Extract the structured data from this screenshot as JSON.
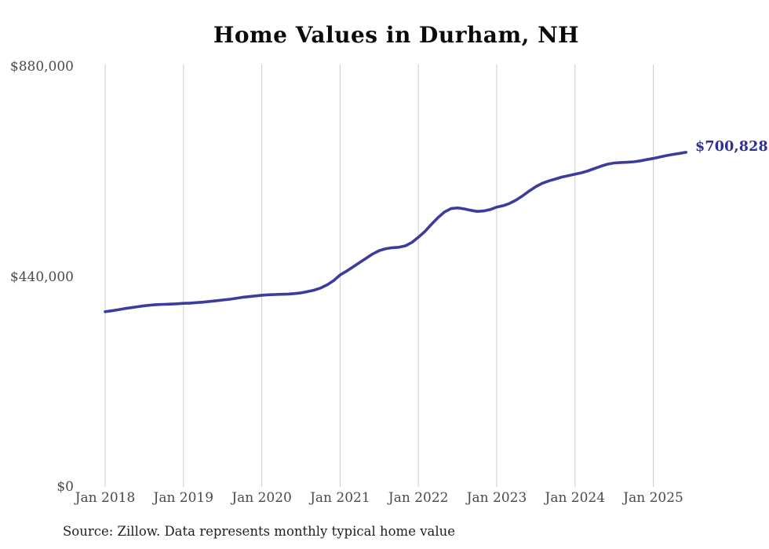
{
  "title": "Home Values in Durham, NH",
  "annotation": {
    "final_label": "$700,828"
  },
  "source_note": "Source: Zillow. Data represents monthly typical home value",
  "colors": {
    "line": "#3d3c9e",
    "annotation": "#2f2d96",
    "gridline": "#cccccc",
    "tick_text": "#4a4a4a",
    "title_text": "#0a0a0a",
    "background": "#ffffff"
  },
  "chart_data": {
    "type": "line",
    "title": "Home Values in Durham, NH",
    "xlabel": "",
    "ylabel": "",
    "x_start": "2018-01",
    "x_end": "2025-06",
    "x_interval": "monthly",
    "ylim": [
      0,
      880000
    ],
    "grid": "vertical-only",
    "legend": "none",
    "final_value": 700828,
    "y_ticks": [
      {
        "label": "$880,000",
        "value": 880000
      },
      {
        "label": "$440,000",
        "value": 440000
      },
      {
        "label": "$0",
        "value": 0
      }
    ],
    "x_ticks": [
      "Jan 2018",
      "Jan 2019",
      "Jan 2020",
      "Jan 2021",
      "Jan 2022",
      "Jan 2023",
      "Jan 2024",
      "Jan 2025"
    ],
    "values": [
      367000,
      369000,
      371000,
      373500,
      375500,
      377500,
      379500,
      381000,
      382000,
      382500,
      383000,
      383500,
      384500,
      385000,
      386000,
      387000,
      388500,
      390000,
      391500,
      393000,
      395000,
      397000,
      398500,
      400000,
      401500,
      402500,
      403000,
      403500,
      404000,
      405000,
      406500,
      409000,
      412000,
      416500,
      423000,
      432000,
      444000,
      452000,
      461000,
      470000,
      479000,
      488000,
      495000,
      499000,
      501000,
      502000,
      505000,
      512000,
      523000,
      535000,
      550000,
      564000,
      576000,
      583000,
      584500,
      582500,
      579500,
      577000,
      578000,
      581000,
      586000,
      589000,
      594000,
      601000,
      610000,
      620000,
      629000,
      636000,
      641000,
      645000,
      649000,
      652000,
      655000,
      658000,
      662000,
      667000,
      672000,
      676000,
      678500,
      679500,
      680000,
      681000,
      683000,
      685500,
      688000,
      691000,
      694000,
      696500,
      698500,
      700828
    ]
  }
}
